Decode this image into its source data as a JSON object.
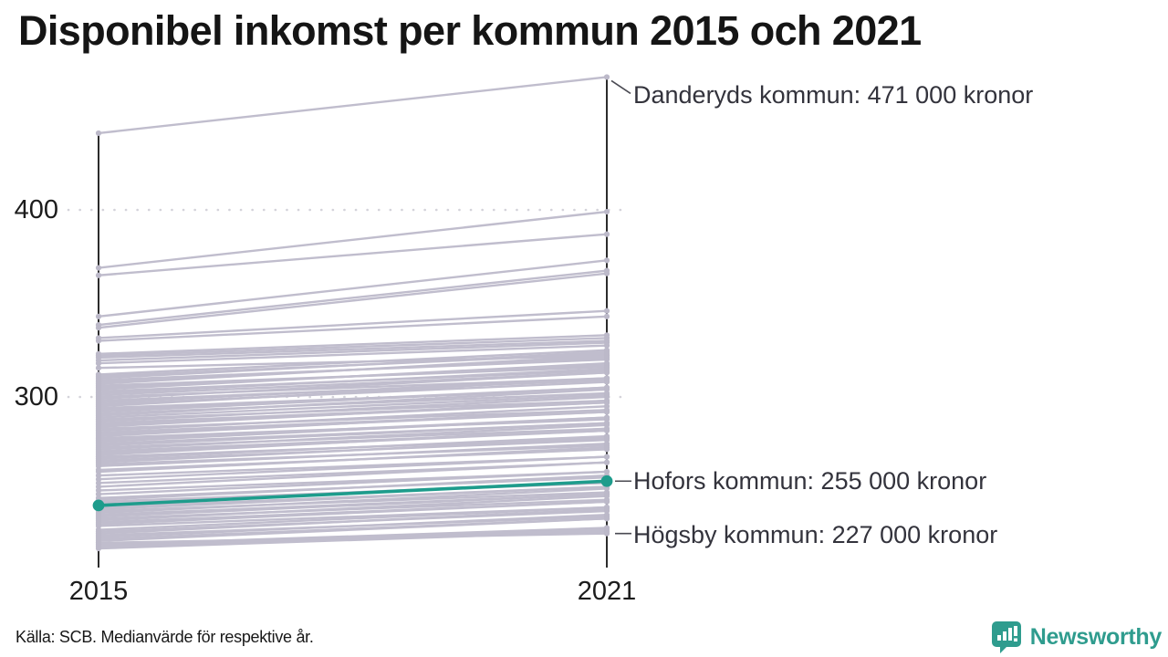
{
  "title": "Disponibel inkomst per kommun 2015 och 2021",
  "source_note": "Källa: SCB. Medianvärde för respektive år.",
  "brand": {
    "name": "Newsworthy",
    "color": "#2f9c8e"
  },
  "colors": {
    "line_gray": "#c0bdcd",
    "dot_gray": "#bcb9c9",
    "accent_teal": "#1e9c8c",
    "axis": "#141414",
    "grid": "#d4d3da",
    "leader": "#4a4a52",
    "annotation_text": "#33333c"
  },
  "chart_data": {
    "type": "line",
    "variant": "slope-chart",
    "title": "Disponibel inkomst per kommun 2015 och 2021",
    "unit_hint": "kronor (tusental pa axeln)",
    "x_categories": [
      "2015",
      "2021"
    ],
    "y_ticks": [
      400,
      300
    ],
    "grid": "dotted horizontal at y ticks",
    "legend_position": "none",
    "annotations": [
      {
        "id": "danderyd",
        "label": "Danderyds kommun: 471 000 kronor",
        "value_2021": 471,
        "leader": "diagonal"
      },
      {
        "id": "hofors",
        "label": "Hofors kommun: 255 000 kronor",
        "value_2021": 255,
        "leader": "horizontal"
      },
      {
        "id": "hogsby",
        "label": "Högsby kommun: 227 000 kronor",
        "value_2021": 227,
        "leader": "horizontal"
      }
    ],
    "highlight_series": {
      "name": "Hofors kommun",
      "values": [
        242,
        255
      ]
    },
    "labeled_series": [
      {
        "name": "Danderyds kommun",
        "values": [
          441,
          471
        ]
      },
      {
        "name": "Högsby kommun",
        "values": [
          222,
          227
        ]
      }
    ],
    "background_lines": [
      [
        441,
        471
      ],
      [
        369,
        399
      ],
      [
        365,
        387
      ],
      [
        343,
        373
      ],
      [
        338.5,
        367.5
      ],
      [
        337,
        366
      ],
      [
        331.5,
        346
      ],
      [
        330,
        343
      ],
      [
        323,
        333
      ],
      [
        322,
        331.5
      ],
      [
        321,
        330
      ],
      [
        319.5,
        329
      ],
      [
        318,
        327.5
      ],
      [
        315.5,
        322
      ],
      [
        312,
        325
      ],
      [
        311,
        323
      ],
      [
        310,
        324
      ],
      [
        309,
        320
      ],
      [
        308,
        321
      ],
      [
        307,
        322
      ],
      [
        306,
        316
      ],
      [
        305,
        317
      ],
      [
        304,
        318
      ],
      [
        303,
        314
      ],
      [
        302,
        315
      ],
      [
        301,
        313
      ],
      [
        300,
        310
      ],
      [
        299,
        313
      ],
      [
        298,
        309
      ],
      [
        297,
        310
      ],
      [
        296,
        308
      ],
      [
        295,
        310
      ],
      [
        294,
        304
      ],
      [
        293,
        305
      ],
      [
        292,
        305
      ],
      [
        291,
        302
      ],
      [
        290,
        304
      ],
      [
        289,
        301
      ],
      [
        288,
        298
      ],
      [
        287,
        300
      ],
      [
        286,
        297
      ],
      [
        285,
        297
      ],
      [
        284,
        298
      ],
      [
        283,
        293
      ],
      [
        282,
        295
      ],
      [
        281,
        292
      ],
      [
        280,
        292
      ],
      [
        279,
        293
      ],
      [
        278,
        288
      ],
      [
        277,
        289
      ],
      [
        276,
        289
      ],
      [
        275,
        286
      ],
      [
        274,
        286
      ],
      [
        273,
        283
      ],
      [
        272,
        285
      ],
      [
        271,
        282
      ],
      [
        270,
        282
      ],
      [
        269,
        283
      ],
      [
        268,
        278
      ],
      [
        267,
        279
      ],
      [
        266,
        277
      ],
      [
        265,
        278
      ],
      [
        264,
        274
      ],
      [
        263,
        275
      ],
      [
        261,
        272
      ],
      [
        260,
        273
      ],
      [
        258,
        268
      ],
      [
        256,
        268
      ],
      [
        254,
        265
      ],
      [
        252,
        265
      ],
      [
        250,
        260
      ],
      [
        248,
        260
      ],
      [
        246,
        257
      ],
      [
        245,
        258
      ],
      [
        244,
        254
      ],
      [
        243,
        255
      ],
      [
        241,
        252
      ],
      [
        240,
        252
      ],
      [
        239,
        249
      ],
      [
        238,
        251
      ],
      [
        237,
        248
      ],
      [
        236,
        248
      ],
      [
        235,
        245
      ],
      [
        234,
        247
      ],
      [
        233,
        244
      ],
      [
        232,
        244
      ],
      [
        231,
        241
      ],
      [
        229,
        241
      ],
      [
        228,
        239
      ],
      [
        227,
        240
      ],
      [
        226,
        236
      ],
      [
        225,
        237
      ],
      [
        224,
        235
      ],
      [
        223,
        235
      ],
      [
        221,
        230
      ],
      [
        220,
        229
      ],
      [
        219,
        228
      ],
      [
        222,
        227
      ]
    ]
  }
}
